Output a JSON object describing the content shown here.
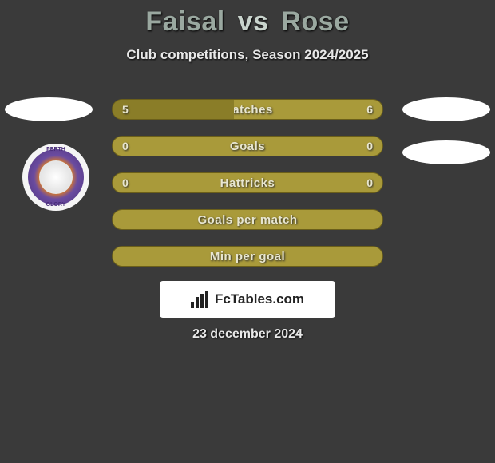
{
  "title": {
    "player1": "Faisal",
    "vs": "vs",
    "player2": "Rose"
  },
  "subtitle": "Club competitions, Season 2024/2025",
  "badge": {
    "top_text": "PERTH",
    "bottom_text": "GLORY"
  },
  "bars": [
    {
      "label": "Matches",
      "left": "5",
      "right": "6",
      "fill_pct": 45
    },
    {
      "label": "Goals",
      "left": "0",
      "right": "0",
      "fill_pct": 0
    },
    {
      "label": "Hattricks",
      "left": "0",
      "right": "0",
      "fill_pct": 0
    },
    {
      "label": "Goals per match",
      "left": "",
      "right": "",
      "fill_pct": 0
    },
    {
      "label": "Min per goal",
      "left": "",
      "right": "",
      "fill_pct": 0
    }
  ],
  "logo_text": "FcTables.com",
  "date": "23 december 2024",
  "colors": {
    "background": "#3a3a3a",
    "bar_bg": "#a99a3a",
    "bar_fill": "#8a7d28",
    "bar_border": "#6b5f1a",
    "title_color": "#9aa8a0",
    "oval_bg": "#ffffff"
  }
}
